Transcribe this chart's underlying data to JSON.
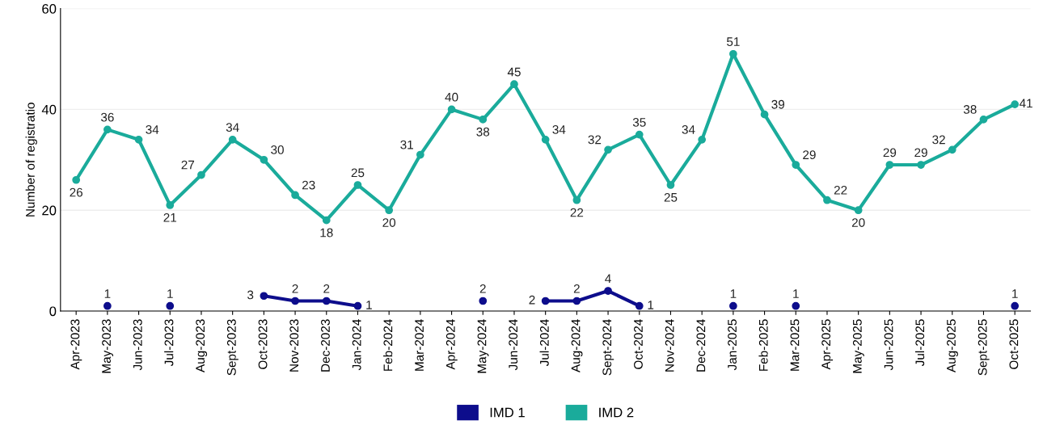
{
  "chart_data": {
    "type": "line",
    "ylabel": "Number of registratio",
    "categories": [
      "Apr-2023",
      "May-2023",
      "Jun-2023",
      "Jul-2023",
      "Aug-2023",
      "Sept-2023",
      "Oct-2023",
      "Nov-2023",
      "Dec-2023",
      "Jan-2024",
      "Feb-2024",
      "Mar-2024",
      "Apr-2024",
      "May-2024",
      "Jun-2024",
      "Jul-2024",
      "Aug-2024",
      "Sept-2024",
      "Oct-2024",
      "Nov-2024",
      "Dec-2024",
      "Jan-2025",
      "Feb-2025",
      "Mar-2025",
      "Apr-2025",
      "May-2025",
      "Jun-2025",
      "Jul-2025",
      "Aug-2025",
      "Sept-2025",
      "Oct-2025"
    ],
    "series": [
      {
        "name": "IMD 1",
        "color": "#0d0d8c",
        "values": [
          null,
          1,
          null,
          1,
          null,
          null,
          3,
          2,
          2,
          1,
          null,
          null,
          null,
          2,
          null,
          2,
          2,
          4,
          1,
          null,
          null,
          1,
          null,
          1,
          null,
          null,
          null,
          null,
          null,
          null,
          1
        ]
      },
      {
        "name": "IMD 2",
        "color": "#1aab9b",
        "values": [
          26,
          36,
          34,
          21,
          27,
          34,
          30,
          23,
          18,
          25,
          20,
          31,
          40,
          38,
          45,
          34,
          22,
          32,
          35,
          25,
          34,
          51,
          39,
          29,
          22,
          20,
          29,
          29,
          32,
          38,
          41
        ]
      }
    ],
    "ylim": [
      0,
      60
    ],
    "yticks": [
      0,
      20,
      40,
      60
    ],
    "grid": "y",
    "legend": "bottom",
    "marker": "circle",
    "line_style": "solid",
    "data_labels": true
  }
}
